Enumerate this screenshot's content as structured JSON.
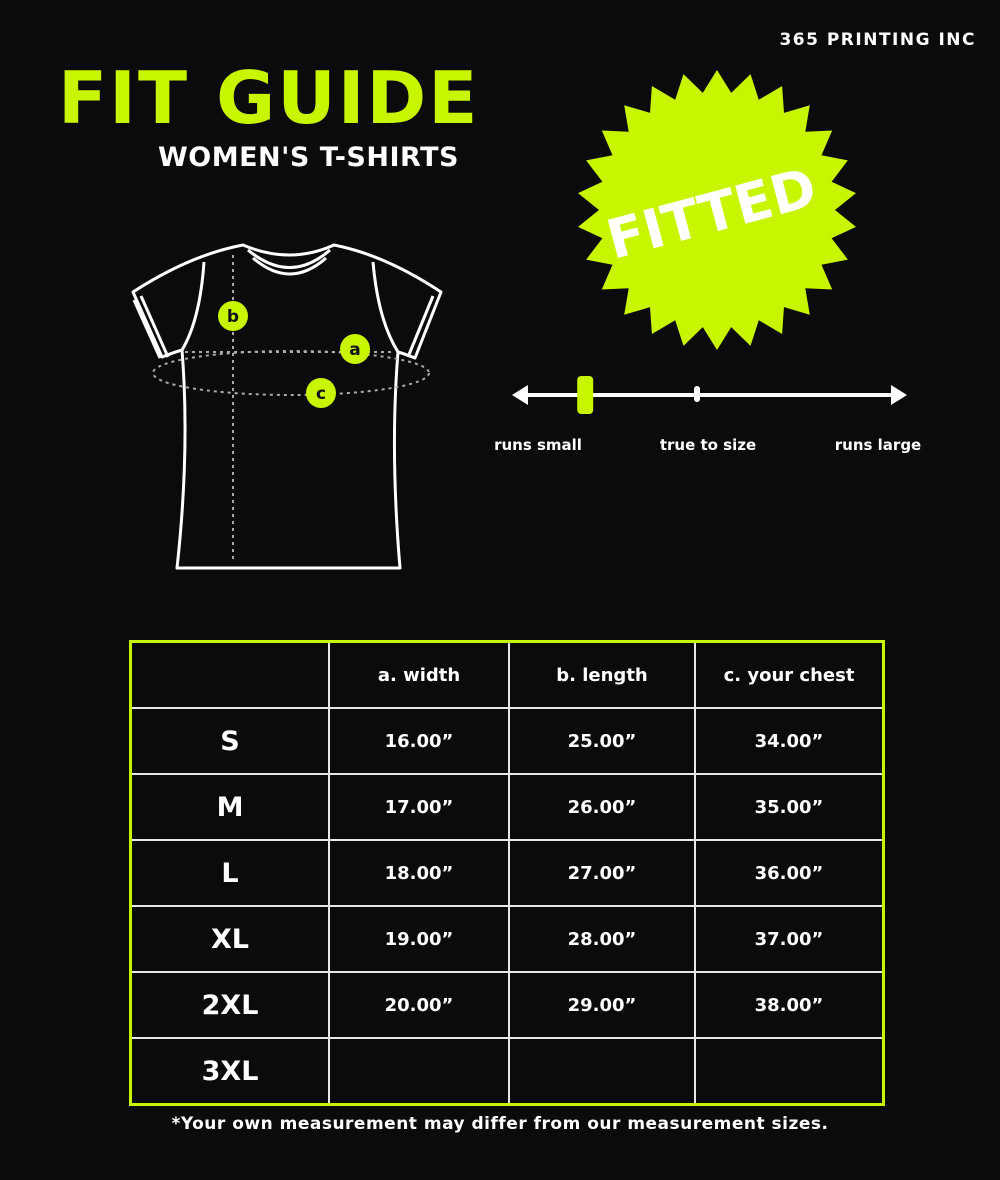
{
  "brand": "365 PRINTING INC",
  "title": "FIT GUIDE",
  "subtitle": "WOMEN'S T-SHIRTS",
  "badge": "FITTED",
  "accent_color": "#c8f500",
  "diagram": {
    "labels": [
      "a",
      "b",
      "c"
    ]
  },
  "fit_scale": {
    "value": 0.18,
    "labels": {
      "small": "runs small",
      "true": "true to size",
      "large": "runs large"
    }
  },
  "table": {
    "headers": [
      "",
      "a. width",
      "b. length",
      "c. your chest"
    ],
    "rows": [
      [
        "S",
        "16.00”",
        "25.00”",
        "34.00”"
      ],
      [
        "M",
        "17.00”",
        "26.00”",
        "35.00”"
      ],
      [
        "L",
        "18.00”",
        "27.00”",
        "36.00”"
      ],
      [
        "XL",
        "19.00”",
        "28.00”",
        "37.00”"
      ],
      [
        "2XL",
        "20.00”",
        "29.00”",
        "38.00”"
      ],
      [
        "3XL",
        "",
        "",
        ""
      ]
    ]
  },
  "footnote": "*Your own measurement may differ from our measurement sizes."
}
